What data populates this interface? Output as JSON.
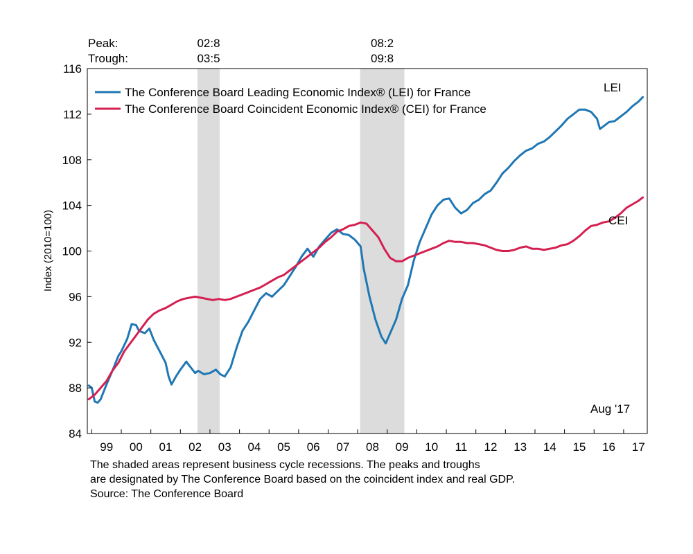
{
  "chart_data": {
    "type": "line",
    "title": "",
    "xlabel": "",
    "ylabel": "Index (2010=100)",
    "ylim": [
      84,
      116
    ],
    "yticks": [
      "84",
      "88",
      "92",
      "96",
      "100",
      "104",
      "108",
      "112",
      "116"
    ],
    "xlim": [
      1998.85,
      2017.8
    ],
    "xticks": [
      {
        "label": "99",
        "x": 1999.5
      },
      {
        "label": "00",
        "x": 2000.5
      },
      {
        "label": "01",
        "x": 2001.5
      },
      {
        "label": "02",
        "x": 2002.5
      },
      {
        "label": "03",
        "x": 2003.5
      },
      {
        "label": "04",
        "x": 2004.5
      },
      {
        "label": "05",
        "x": 2005.5
      },
      {
        "label": "06",
        "x": 2006.5
      },
      {
        "label": "07",
        "x": 2007.5
      },
      {
        "label": "08",
        "x": 2008.5
      },
      {
        "label": "09",
        "x": 2009.5
      },
      {
        "label": "10",
        "x": 2010.5
      },
      {
        "label": "11",
        "x": 2011.5
      },
      {
        "label": "12",
        "x": 2012.5
      },
      {
        "label": "13",
        "x": 2013.5
      },
      {
        "label": "14",
        "x": 2014.5
      },
      {
        "label": "15",
        "x": 2015.5
      },
      {
        "label": "16",
        "x": 2016.5
      },
      {
        "label": "17",
        "x": 2017.5
      }
    ],
    "grid": false,
    "legend_position": "top-left",
    "recession_header": {
      "peak_label": "Peak:",
      "trough_label": "Trough:"
    },
    "recessions": [
      {
        "peak": "02:8",
        "trough": "03:5",
        "start": 2002.58,
        "end": 2003.33
      },
      {
        "peak": "08:2",
        "trough": "09:8",
        "start": 2008.08,
        "end": 2009.58
      }
    ],
    "date_note": "Aug '17",
    "series": [
      {
        "name": "The Conference Board Leading Economic Index® (LEI) for France",
        "short_label": "LEI",
        "color": "#1f77b4",
        "x": [
          1998.9,
          1999.0,
          1999.1,
          1999.2,
          1999.3,
          1999.5,
          1999.7,
          1999.9,
          2000.0,
          2000.2,
          2000.35,
          2000.5,
          2000.6,
          2000.8,
          2000.95,
          2001.1,
          2001.3,
          2001.5,
          2001.6,
          2001.7,
          2001.85,
          2002.0,
          2002.2,
          2002.35,
          2002.5,
          2002.6,
          2002.8,
          2003.0,
          2003.2,
          2003.35,
          2003.5,
          2003.7,
          2003.9,
          2004.1,
          2004.3,
          2004.5,
          2004.7,
          2004.9,
          2005.1,
          2005.3,
          2005.5,
          2005.7,
          2005.9,
          2006.1,
          2006.3,
          2006.5,
          2006.7,
          2006.9,
          2007.1,
          2007.3,
          2007.5,
          2007.7,
          2007.9,
          2008.1,
          2008.2,
          2008.4,
          2008.6,
          2008.8,
          2008.95,
          2009.1,
          2009.3,
          2009.5,
          2009.7,
          2009.9,
          2010.1,
          2010.3,
          2010.5,
          2010.7,
          2010.9,
          2011.1,
          2011.3,
          2011.5,
          2011.7,
          2011.9,
          2012.1,
          2012.3,
          2012.5,
          2012.7,
          2012.9,
          2013.1,
          2013.3,
          2013.5,
          2013.7,
          2013.9,
          2014.1,
          2014.3,
          2014.5,
          2014.7,
          2014.9,
          2015.1,
          2015.3,
          2015.5,
          2015.7,
          2015.9,
          2016.1,
          2016.2,
          2016.3,
          2016.5,
          2016.7,
          2016.9,
          2017.1,
          2017.3,
          2017.5,
          2017.65
        ],
        "values": [
          88.2,
          88.0,
          86.8,
          86.7,
          87.0,
          88.3,
          89.5,
          90.8,
          91.2,
          92.3,
          93.6,
          93.5,
          93.0,
          92.8,
          93.2,
          92.2,
          91.2,
          90.2,
          89.0,
          88.3,
          89.0,
          89.6,
          90.3,
          89.8,
          89.3,
          89.5,
          89.2,
          89.3,
          89.6,
          89.2,
          89.0,
          89.8,
          91.5,
          93.0,
          93.8,
          94.8,
          95.8,
          96.3,
          96.0,
          96.5,
          97.0,
          97.8,
          98.6,
          99.5,
          100.2,
          99.5,
          100.4,
          101.0,
          101.6,
          101.9,
          101.5,
          101.4,
          101.0,
          100.4,
          98.5,
          96.0,
          94.0,
          92.5,
          91.9,
          92.8,
          94.0,
          95.8,
          97.0,
          99.2,
          100.8,
          102.0,
          103.2,
          104.0,
          104.5,
          104.6,
          103.8,
          103.3,
          103.6,
          104.2,
          104.5,
          105.0,
          105.3,
          106.0,
          106.8,
          107.3,
          107.9,
          108.4,
          108.8,
          109.0,
          109.4,
          109.6,
          110.0,
          110.5,
          111.0,
          111.6,
          112.0,
          112.4,
          112.4,
          112.2,
          111.6,
          110.7,
          110.9,
          111.3,
          111.4,
          111.8,
          112.2,
          112.7,
          113.1,
          113.5
        ]
      },
      {
        "name": "The Conference Board Coincident Economic Index® (CEI) for France",
        "short_label": "CEI",
        "color": "#d41f51",
        "x": [
          1998.9,
          1999.1,
          1999.3,
          1999.5,
          1999.7,
          1999.9,
          2000.1,
          2000.3,
          2000.5,
          2000.7,
          2000.9,
          2001.1,
          2001.3,
          2001.5,
          2001.7,
          2001.9,
          2002.1,
          2002.3,
          2002.5,
          2002.7,
          2002.9,
          2003.1,
          2003.3,
          2003.5,
          2003.7,
          2003.9,
          2004.1,
          2004.3,
          2004.5,
          2004.7,
          2004.9,
          2005.1,
          2005.3,
          2005.5,
          2005.7,
          2005.9,
          2006.1,
          2006.3,
          2006.5,
          2006.7,
          2006.9,
          2007.1,
          2007.3,
          2007.5,
          2007.7,
          2007.9,
          2008.1,
          2008.3,
          2008.5,
          2008.7,
          2008.9,
          2009.1,
          2009.3,
          2009.5,
          2009.7,
          2009.9,
          2010.1,
          2010.3,
          2010.5,
          2010.7,
          2010.9,
          2011.1,
          2011.3,
          2011.5,
          2011.7,
          2011.9,
          2012.1,
          2012.3,
          2012.5,
          2012.7,
          2012.9,
          2013.1,
          2013.3,
          2013.5,
          2013.7,
          2013.9,
          2014.1,
          2014.3,
          2014.5,
          2014.7,
          2014.9,
          2015.1,
          2015.3,
          2015.5,
          2015.7,
          2015.9,
          2016.1,
          2016.3,
          2016.5,
          2016.7,
          2016.9,
          2017.1,
          2017.3,
          2017.5,
          2017.65
        ],
        "values": [
          87.0,
          87.4,
          88.0,
          88.6,
          89.5,
          90.2,
          91.2,
          91.9,
          92.6,
          93.3,
          94.0,
          94.5,
          94.8,
          95.0,
          95.3,
          95.6,
          95.8,
          95.9,
          96.0,
          95.9,
          95.8,
          95.7,
          95.8,
          95.7,
          95.8,
          96.0,
          96.2,
          96.4,
          96.6,
          96.8,
          97.1,
          97.4,
          97.7,
          97.9,
          98.3,
          98.7,
          99.1,
          99.5,
          99.9,
          100.3,
          100.8,
          101.2,
          101.7,
          101.9,
          102.2,
          102.3,
          102.5,
          102.4,
          101.8,
          101.2,
          100.2,
          99.4,
          99.1,
          99.1,
          99.4,
          99.6,
          99.8,
          100.0,
          100.2,
          100.4,
          100.7,
          100.9,
          100.8,
          100.8,
          100.7,
          100.7,
          100.6,
          100.5,
          100.3,
          100.1,
          100.0,
          100.0,
          100.1,
          100.3,
          100.4,
          100.2,
          100.2,
          100.1,
          100.2,
          100.3,
          100.5,
          100.6,
          100.9,
          101.3,
          101.8,
          102.2,
          102.3,
          102.5,
          102.6,
          102.9,
          103.3,
          103.8,
          104.1,
          104.4,
          104.7
        ]
      }
    ]
  },
  "footnote": {
    "line1": "The shaded areas represent business cycle recessions. The peaks and troughs",
    "line2": "are designated by The Conference Board based on the coincident index and real GDP.",
    "source": "Source: The Conference Board"
  }
}
